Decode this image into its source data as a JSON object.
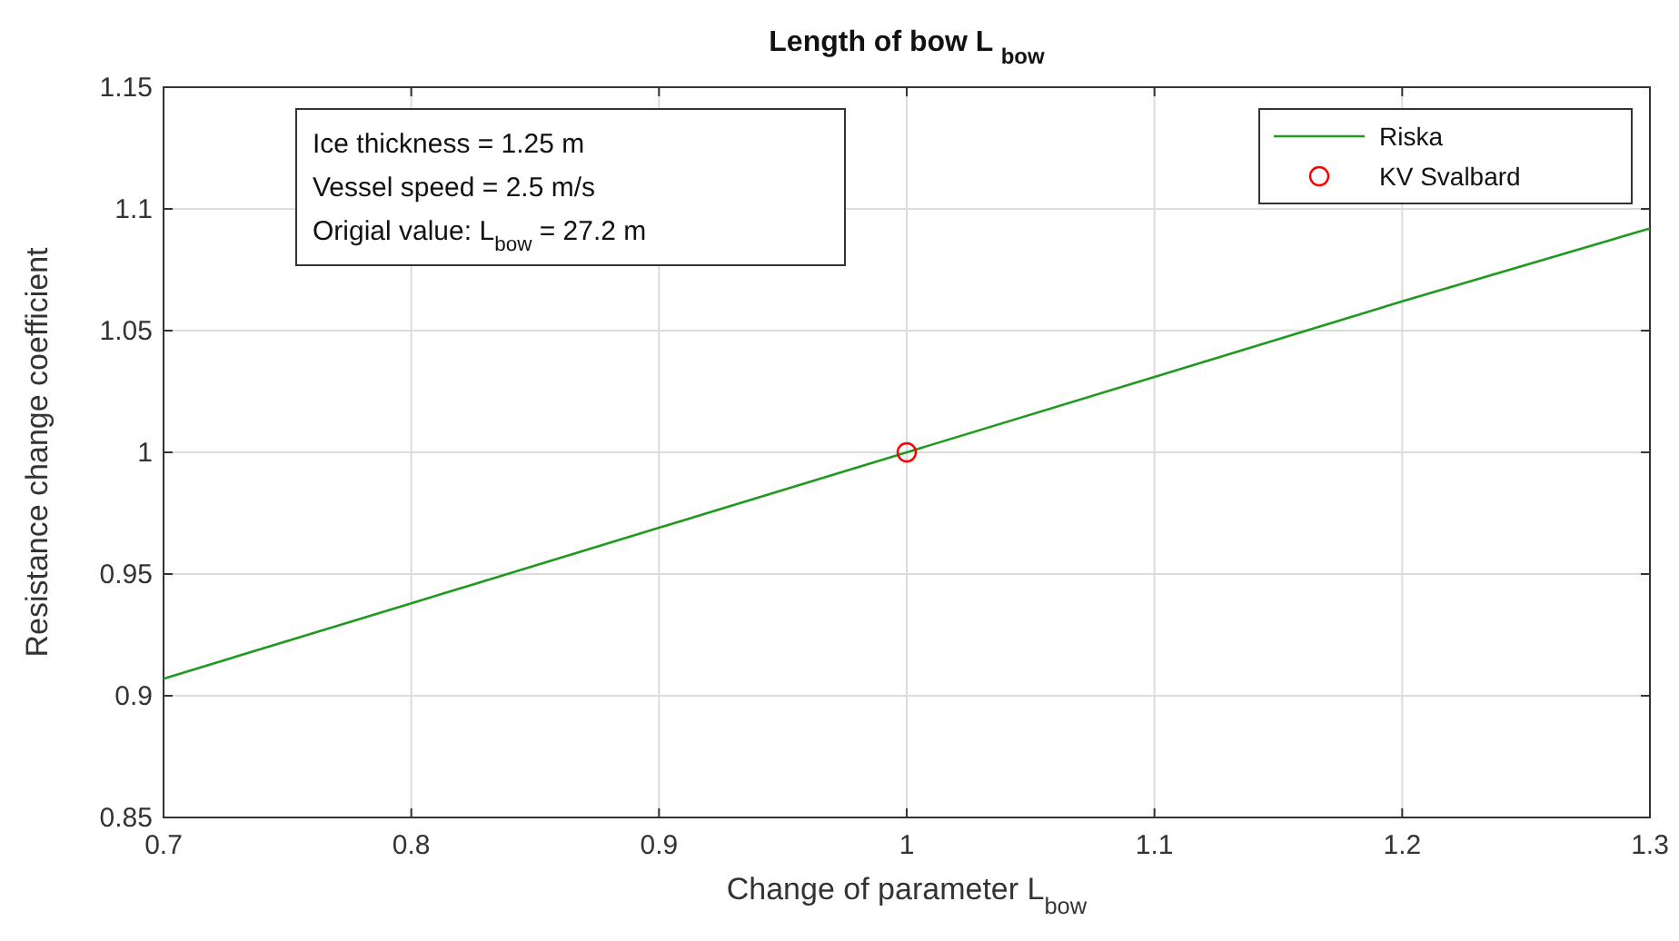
{
  "chart_data": {
    "type": "line",
    "title": "Length of bow L $_{bow}$",
    "xlabel": "Change of parameter L$_{bow}$",
    "ylabel": "Resistance change coefficient",
    "xlim": [
      0.7,
      1.3
    ],
    "ylim": [
      0.85,
      1.15
    ],
    "xticks": [
      0.7,
      0.8,
      0.9,
      1,
      1.1,
      1.2,
      1.3
    ],
    "yticks": [
      0.85,
      0.9,
      0.95,
      1,
      1.05,
      1.1,
      1.15
    ],
    "grid": true,
    "legend": "top right",
    "annotations": [
      "Ice thickness = 1.25 m",
      "Vessel speed = 2.5 m/s",
      "Origial value: L$_{bow}$ = 27.2 m"
    ],
    "series": [
      {
        "name": "Riska",
        "type": "line",
        "color": "#1f9a1f",
        "marker": "none",
        "line_style": "solid",
        "x": [
          0.7,
          0.8,
          0.9,
          1,
          1.1,
          1.2,
          1.3
        ],
        "values": [
          0.907,
          0.938,
          0.969,
          1,
          1.031,
          1.062,
          1.092
        ]
      },
      {
        "name": "KV Svalbard",
        "type": "scatter",
        "color": "#ff0000",
        "marker": "circle",
        "x": [
          1
        ],
        "values": [
          1
        ]
      }
    ]
  }
}
